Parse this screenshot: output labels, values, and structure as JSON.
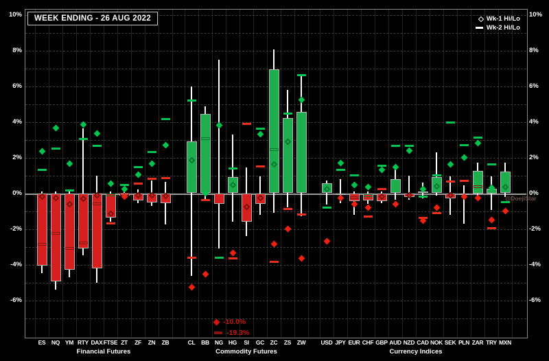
{
  "title": "WEEK ENDING - 26 AUG 2022",
  "legend": [
    {
      "symbol": "diamond-outline-icon",
      "label": "Wk-1 Hi/Lo"
    },
    {
      "symbol": "line-icon",
      "label": "Wk-2 Hi/Lo"
    }
  ],
  "annotations": [
    {
      "symbol": "red-diamond-icon",
      "label": "-10.0%"
    },
    {
      "symbol": "red-bar-icon",
      "label": "-19.3%"
    }
  ],
  "watermark": "@DoejiStar",
  "colors": {
    "background": "#000000",
    "bar_up": "#1fae4d",
    "bar_down": "#d61f1f",
    "marker_green": "#00c24e",
    "marker_red": "#e8301c",
    "whisker": "#ffffff",
    "grid": "#3c3c3c",
    "zero_line": "#9a9a9a",
    "annotation_red": "#c41a10"
  },
  "chart_data": {
    "type": "bar",
    "subtype": "weekly change bars with current-week hi/lo whiskers, Wk-1 hi/lo diamond markers and Wk-2 hi/lo dash markers",
    "ylim": [
      -8.1,
      10.4
    ],
    "grid_step_pct": 1,
    "legend_position": "top-right",
    "axis": {
      "tick_values": [
        10,
        8,
        6,
        4,
        2,
        0,
        -2,
        -4,
        -6
      ],
      "tick_labels": [
        "10%",
        "8%",
        "6%",
        "4%",
        "2%",
        "0%",
        "-2%",
        "-4%",
        "-6%"
      ],
      "sides": [
        "left",
        "right"
      ]
    },
    "groups": [
      {
        "label": "Financial Futures",
        "tickers": [
          {
            "t": "ES",
            "chg": -4.05,
            "whi": 0.1,
            "wlo": -4.5,
            "wk1": [
              [
                2.35,
                "g"
              ],
              [
                -0.2,
                "r"
              ]
            ],
            "wk2": [
              [
                1.3,
                "g"
              ],
              [
                -2.85,
                "r"
              ]
            ]
          },
          {
            "t": "NQ",
            "chg": -4.95,
            "whi": 0.1,
            "wlo": -5.4,
            "wk1": [
              [
                3.65,
                "g"
              ],
              [
                -0.25,
                "r"
              ]
            ],
            "wk2": [
              [
                2.5,
                "g"
              ],
              [
                -2.25,
                "r"
              ]
            ]
          },
          {
            "t": "YM",
            "chg": -4.3,
            "whi": 0.1,
            "wlo": -4.7,
            "wk1": [
              [
                1.65,
                "g"
              ],
              [
                -0.6,
                "r"
              ]
            ],
            "wk2": [
              [
                0.15,
                "g"
              ],
              [
                -3.1,
                "r"
              ]
            ]
          },
          {
            "t": "RTY",
            "chg": -3.1,
            "whi": 3.65,
            "wlo": -3.5,
            "wk1": [
              [
                3.85,
                "g"
              ],
              [
                -0.3,
                "r"
              ]
            ],
            "wk2": [
              [
                3.05,
                "g"
              ],
              [
                -2.8,
                "r"
              ]
            ]
          },
          {
            "t": "DAX",
            "chg": -4.2,
            "whi": 1.0,
            "wlo": -5.0,
            "wk1": [
              [
                3.35,
                "g"
              ],
              [
                -0.1,
                "r"
              ]
            ],
            "wk2": [
              [
                2.65,
                "g"
              ],
              [
                -0.6,
                "r"
              ]
            ]
          },
          {
            "t": "FTSE",
            "chg": -1.35,
            "whi": 0.1,
            "wlo": -1.6,
            "wk1": [
              [
                0.55,
                "g"
              ],
              [
                -1.15,
                "r"
              ]
            ],
            "wk2": [
              [
                -0.1,
                "g"
              ],
              [
                -1.7,
                "r"
              ]
            ]
          },
          {
            "t": "ZT",
            "chg": -0.15,
            "whi": 0.1,
            "wlo": -0.25,
            "wk1": [
              [
                0.25,
                "g"
              ],
              [
                -0.2,
                "r"
              ]
            ],
            "wk2": [
              [
                0.45,
                "g"
              ],
              [
                -0.05,
                "r"
              ]
            ]
          },
          {
            "t": "ZF",
            "chg": -0.4,
            "whi": 0.2,
            "wlo": -0.55,
            "wk1": [
              [
                1.05,
                "g"
              ],
              [
                -0.1,
                "r"
              ]
            ],
            "wk2": [
              [
                1.45,
                "g"
              ],
              [
                0.55,
                "r"
              ]
            ]
          },
          {
            "t": "ZN",
            "chg": -0.5,
            "whi": 0.7,
            "wlo": -0.7,
            "wk1": [
              [
                1.65,
                "g"
              ],
              [
                -0.1,
                "r"
              ]
            ],
            "wk2": [
              [
                2.3,
                "g"
              ],
              [
                0.8,
                "r"
              ]
            ]
          },
          {
            "t": "ZB",
            "chg": -0.55,
            "whi": 0.65,
            "wlo": -1.75,
            "wk1": [
              [
                2.7,
                "g"
              ],
              [
                -0.15,
                "r"
              ]
            ],
            "wk2": [
              [
                4.15,
                "g"
              ],
              [
                0.85,
                "r"
              ]
            ]
          }
        ]
      },
      {
        "label": "Commodity Futures",
        "tickers": [
          {
            "t": "CL",
            "chg": 2.9,
            "whi": 6.0,
            "wlo": -4.65,
            "wk1": [
              [
                1.85,
                "g"
              ],
              [
                -5.25,
                "r"
              ]
            ],
            "wk2": [
              [
                5.2,
                "g"
              ],
              [
                -3.6,
                "r"
              ]
            ]
          },
          {
            "t": "BB",
            "chg": 4.45,
            "whi": 4.85,
            "wlo": -0.35,
            "wk1": [
              [
                0.0,
                "g"
              ],
              [
                -4.55,
                "r"
              ]
            ],
            "wk2": [
              [
                3.05,
                "g"
              ],
              [
                -0.4,
                "r"
              ]
            ]
          },
          {
            "t": "NG",
            "chg": -0.6,
            "whi": 7.5,
            "wlo": -3.1,
            "wk1": [
              [
                3.8,
                "g"
              ]
            ],
            "wk2": [
              [
                -3.6,
                "g"
              ]
            ],
            "offscale_wk1_lo": "-10.0%",
            "offscale_wk2_lo": "-19.3%"
          },
          {
            "t": "HG",
            "chg": 0.9,
            "whi": 3.3,
            "wlo": -1.6,
            "wk1": [
              [
                0.45,
                "g"
              ],
              [
                -3.35,
                "r"
              ]
            ],
            "wk2": [
              [
                1.4,
                "g"
              ],
              [
                -3.65,
                "r"
              ]
            ]
          },
          {
            "t": "SI",
            "chg": -1.6,
            "whi": 1.45,
            "wlo": -2.4,
            "wk1": [
              [
                -0.75,
                "r"
              ]
            ],
            "wk2": [
              [
                3.9,
                "r"
              ]
            ]
          },
          {
            "t": "GC",
            "chg": -0.6,
            "whi": 0.95,
            "wlo": -1.2,
            "wk1": [
              [
                3.3,
                "g"
              ],
              [
                -0.25,
                "r"
              ]
            ],
            "wk2": [
              [
                3.6,
                "g"
              ],
              [
                1.5,
                "r"
              ]
            ]
          },
          {
            "t": "ZC",
            "chg": 6.95,
            "whi": 8.05,
            "wlo": -1.1,
            "wk1": [
              [
                1.6,
                "g"
              ],
              [
                -2.85,
                "r"
              ]
            ],
            "wk2": [
              [
                2.45,
                "g"
              ],
              [
                -3.85,
                "r"
              ]
            ]
          },
          {
            "t": "ZS",
            "chg": 4.2,
            "whi": 5.8,
            "wlo": -0.8,
            "wk1": [
              [
                2.9,
                "g"
              ],
              [
                -2.0,
                "r"
              ]
            ],
            "wk2": [
              [
                4.45,
                "g"
              ],
              [
                -0.9,
                "r"
              ]
            ]
          },
          {
            "t": "ZW",
            "chg": 4.55,
            "whi": 6.65,
            "wlo": -1.3,
            "wk1": [
              [
                5.25,
                "g"
              ],
              [
                -3.65,
                "r"
              ]
            ],
            "wk2": [
              [
                6.6,
                "g"
              ],
              [
                -1.2,
                "r"
              ]
            ]
          }
        ]
      },
      {
        "label": "Currency Indices",
        "tickers": [
          {
            "t": "USD",
            "chg": 0.55,
            "whi": 0.7,
            "wlo": -0.65,
            "wk1": [
              [
                0.25,
                "g"
              ],
              [
                -2.7,
                "r"
              ]
            ],
            "wk2": [
              [
                -0.8,
                "g"
              ]
            ]
          },
          {
            "t": "JPY",
            "chg": -0.1,
            "whi": 0.8,
            "wlo": -0.55,
            "wk1": [
              [
                1.7,
                "g"
              ],
              [
                -0.25,
                "r"
              ]
            ],
            "wk2": [
              [
                1.3,
                "g"
              ]
            ]
          },
          {
            "t": "EUR",
            "chg": -0.45,
            "whi": 0.1,
            "wlo": -1.2,
            "wk1": [
              [
                0.45,
                "g"
              ],
              [
                -0.6,
                "r"
              ]
            ],
            "wk2": [
              [
                1.0,
                "g"
              ],
              [
                -0.25,
                "r"
              ]
            ]
          },
          {
            "t": "CHF",
            "chg": -0.4,
            "whi": 0.1,
            "wlo": -0.6,
            "wk1": [
              [
                0.35,
                "g"
              ],
              [
                -0.8,
                "r"
              ]
            ],
            "wk2": [
              [
                -0.15,
                "g"
              ],
              [
                -1.3,
                "r"
              ]
            ]
          },
          {
            "t": "GBP",
            "chg": -0.45,
            "whi": 0.1,
            "wlo": -0.55,
            "wk1": [
              [
                1.3,
                "g"
              ],
              [
                -0.2,
                "r"
              ]
            ],
            "wk2": [
              [
                1.55,
                "g"
              ],
              [
                0.25,
                "r"
              ]
            ]
          },
          {
            "t": "AUD",
            "chg": 0.8,
            "whi": 1.45,
            "wlo": -0.35,
            "wk1": [
              [
                1.45,
                "g"
              ],
              [
                -0.6,
                "r"
              ]
            ],
            "wk2": [
              [
                2.65,
                "g"
              ]
            ]
          },
          {
            "t": "NZD",
            "chg": -0.2,
            "whi": 1.0,
            "wlo": -0.35,
            "wk1": [
              [
                2.4,
                "g"
              ],
              [
                -0.1,
                "r"
              ]
            ],
            "wk2": [
              [
                2.65,
                "g"
              ]
            ]
          },
          {
            "t": "CAD",
            "chg": 0.1,
            "whi": 0.6,
            "wlo": -0.3,
            "wk1": [
              [
                0.25,
                "g"
              ],
              [
                -1.55,
                "r"
              ]
            ],
            "wk2": [
              [
                -0.2,
                "g"
              ],
              [
                -1.4,
                "r"
              ]
            ]
          },
          {
            "t": "NOK",
            "chg": 0.9,
            "whi": 2.3,
            "wlo": -0.15,
            "wk1": [
              [
                0.4,
                "g"
              ],
              [
                -0.8,
                "r"
              ]
            ],
            "wk2": [
              [
                1.0,
                "g"
              ],
              [
                -1.1,
                "r"
              ]
            ]
          },
          {
            "t": "SEK",
            "chg": -0.3,
            "whi": 0.95,
            "wlo": -1.2,
            "wk1": [
              [
                1.6,
                "g"
              ],
              [
                -0.1,
                "r"
              ]
            ],
            "wk2": [
              [
                3.95,
                "g"
              ],
              [
                0.65,
                "r"
              ]
            ]
          },
          {
            "t": "PLN",
            "chg": -0.1,
            "whi": 0.45,
            "wlo": -1.7,
            "wk1": [
              [
                2.0,
                "g"
              ],
              [
                -0.2,
                "r"
              ]
            ],
            "wk2": [
              [
                2.7,
                "g"
              ],
              [
                0.7,
                "r"
              ]
            ]
          },
          {
            "t": "ZAR",
            "chg": 1.25,
            "whi": 1.7,
            "wlo": -0.3,
            "wk1": [
              [
                2.8,
                "g"
              ],
              [
                -0.25,
                "r"
              ]
            ],
            "wk2": [
              [
                3.1,
                "g"
              ],
              [
                0.35,
                "r"
              ]
            ]
          },
          {
            "t": "TRY",
            "chg": 0.25,
            "whi": 0.95,
            "wlo": -0.95,
            "wk1": [
              [
                0.3,
                "g"
              ],
              [
                -1.5,
                "r"
              ]
            ],
            "wk2": [
              [
                1.6,
                "g"
              ],
              [
                -1.95,
                "r"
              ]
            ]
          },
          {
            "t": "MXN",
            "chg": 1.2,
            "whi": 1.7,
            "wlo": -0.2,
            "wk1": [
              [
                0.35,
                "g"
              ],
              [
                -1.0,
                "r"
              ]
            ],
            "wk2": [
              [
                -0.5,
                "g"
              ]
            ]
          }
        ]
      }
    ]
  }
}
